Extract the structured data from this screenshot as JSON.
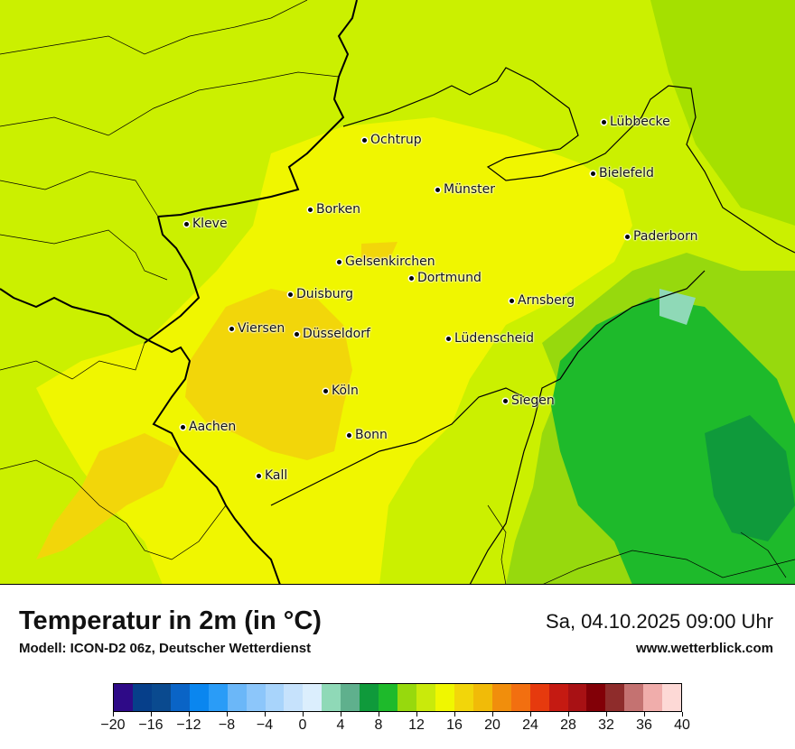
{
  "map": {
    "cities": [
      {
        "name": "Lübbecke"
      },
      {
        "name": "Ochtrup"
      },
      {
        "name": "Bielefeld"
      },
      {
        "name": "Münster"
      },
      {
        "name": "Borken"
      },
      {
        "name": "Kleve"
      },
      {
        "name": "Paderborn"
      },
      {
        "name": "Gelsenkirchen"
      },
      {
        "name": "Dortmund"
      },
      {
        "name": "Duisburg"
      },
      {
        "name": "Arnsberg"
      },
      {
        "name": "Viersen"
      },
      {
        "name": "Düsseldorf"
      },
      {
        "name": "Lüdenscheid"
      },
      {
        "name": "Köln"
      },
      {
        "name": "Siegen"
      },
      {
        "name": "Aachen"
      },
      {
        "name": "Bonn"
      },
      {
        "name": "Kall"
      }
    ]
  },
  "footer": {
    "title": "Temperatur in 2m (in °C)",
    "subtitle": "Modell: ICON-D2 06z, Deutscher Wetterdienst",
    "datetime": "Sa, 04.10.2025 09:00 Uhr",
    "website": "www.wetterblick.com"
  },
  "legend": {
    "colors": [
      "#2e0a87",
      "#063f8a",
      "#0a4a8f",
      "#0a64c6",
      "#0a86ef",
      "#2a9cf7",
      "#6bb7f8",
      "#8cc6fa",
      "#a8d4fb",
      "#c6e2fc",
      "#dbeefd",
      "#8fd9b7",
      "#5fb08d",
      "#0f9a3b",
      "#1eba2b",
      "#97d90d",
      "#c9ea0b",
      "#f0f700",
      "#f2d60a",
      "#f1bb08",
      "#f18e0c",
      "#f26f10",
      "#e63a0e",
      "#c51a12",
      "#a81114",
      "#820007",
      "#8e2c2b",
      "#c47271",
      "#f0adab",
      "#fdd9d6"
    ],
    "ticks": [
      "−20",
      "−16",
      "−12",
      "−8",
      "−4",
      "0",
      "4",
      "8",
      "12",
      "16",
      "20",
      "24",
      "28",
      "32",
      "36",
      "40"
    ]
  }
}
